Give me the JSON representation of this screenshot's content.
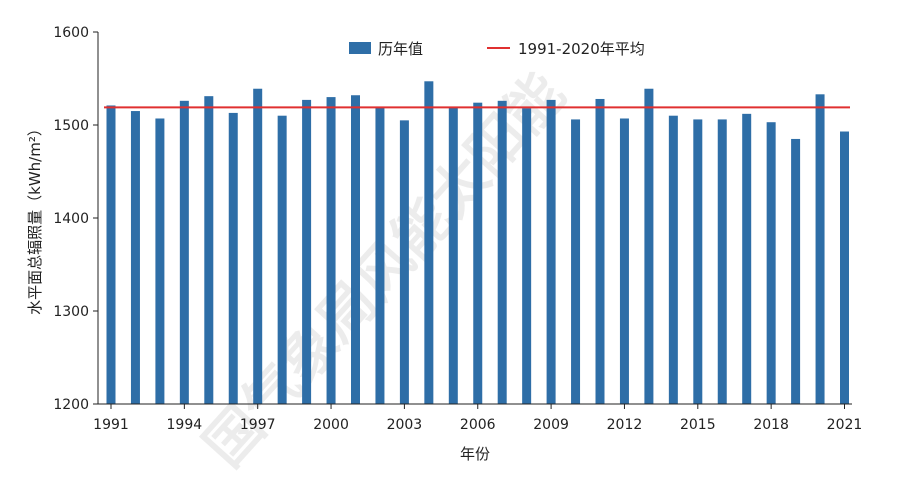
{
  "chart_data": {
    "type": "bar",
    "xlabel": "年份",
    "ylabel": "水平面总辐照量（kWh/m²）",
    "ylim": [
      1200,
      1600
    ],
    "yticks": [
      1200,
      1300,
      1400,
      1500,
      1600
    ],
    "xtick_labels": [
      "1991",
      "1994",
      "1997",
      "2000",
      "2003",
      "2006",
      "2009",
      "2012",
      "2015",
      "2018",
      "2021"
    ],
    "categories": [
      "1991",
      "1992",
      "1993",
      "1994",
      "1995",
      "1996",
      "1997",
      "1998",
      "1999",
      "2000",
      "2001",
      "2002",
      "2003",
      "2004",
      "2005",
      "2006",
      "2007",
      "2008",
      "2009",
      "2010",
      "2011",
      "2012",
      "2013",
      "2014",
      "2015",
      "2016",
      "2017",
      "2018",
      "2019",
      "2020",
      "2021"
    ],
    "series": [
      {
        "name": "历年值",
        "color": "#2e6ea7",
        "values": [
          1521,
          1515,
          1507,
          1526,
          1531,
          1513,
          1539,
          1510,
          1527,
          1530,
          1532,
          1519,
          1505,
          1547,
          1519,
          1524,
          1526,
          1518,
          1527,
          1506,
          1528,
          1507,
          1539,
          1510,
          1506,
          1506,
          1512,
          1503,
          1485,
          1533,
          1493
        ]
      }
    ],
    "reference_line": {
      "name": "1991-2020年平均",
      "color": "#e03030",
      "value": 1519
    },
    "legend_position": "top",
    "grid": false
  },
  "watermark": "国气象局风能太阳能"
}
